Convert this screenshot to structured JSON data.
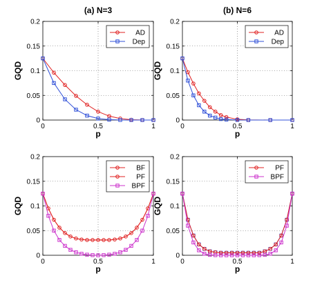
{
  "chart_data": [
    {
      "type": "line",
      "title": "(a) N=3",
      "xlabel": "p",
      "ylabel": "GQD",
      "xlim": [
        0,
        1
      ],
      "ylim": [
        0,
        0.2
      ],
      "x_ticks": [
        "0",
        "0.5",
        "1"
      ],
      "y_ticks": [
        "0",
        "0.05",
        "0.1",
        "0.15",
        "0.2"
      ],
      "grid": true,
      "legend_position": "top-right",
      "x": [
        0,
        0.1,
        0.2,
        0.3,
        0.4,
        0.5,
        0.6,
        0.7,
        0.8,
        0.9,
        1.0
      ],
      "series": [
        {
          "name": "AD",
          "color": "#e02020",
          "marker": "circle",
          "values": [
            0.125,
            0.096,
            0.071,
            0.049,
            0.031,
            0.017,
            0.008,
            0.003,
            0.0007,
            0.0001,
            0
          ]
        },
        {
          "name": "Dep",
          "color": "#3050d8",
          "marker": "square",
          "values": [
            0.125,
            0.075,
            0.042,
            0.021,
            0.009,
            0.003,
            0.0009,
            0.0002,
            0,
            0,
            0
          ]
        }
      ]
    },
    {
      "type": "line",
      "title": "(b) N=6",
      "xlabel": "p",
      "ylabel": "GQD",
      "xlim": [
        0,
        1
      ],
      "ylim": [
        0,
        0.2
      ],
      "x_ticks": [
        "0",
        "0.5",
        "1"
      ],
      "y_ticks": [
        "0",
        "0.05",
        "0.1",
        "0.15",
        "0.2"
      ],
      "grid": true,
      "legend_position": "top-right",
      "x": [
        0,
        0.05,
        0.1,
        0.15,
        0.2,
        0.25,
        0.3,
        0.35,
        0.4,
        0.5,
        0.6,
        0.8,
        1.0
      ],
      "series": [
        {
          "name": "AD",
          "color": "#e02020",
          "marker": "circle",
          "values": [
            0.125,
            0.097,
            0.074,
            0.054,
            0.039,
            0.026,
            0.017,
            0.01,
            0.006,
            0.0015,
            0.0003,
            0,
            0
          ]
        },
        {
          "name": "Dep",
          "color": "#3050d8",
          "marker": "square",
          "values": [
            0.125,
            0.08,
            0.05,
            0.03,
            0.017,
            0.009,
            0.005,
            0.002,
            0.001,
            0.0002,
            0,
            0,
            0
          ]
        }
      ]
    },
    {
      "type": "line",
      "title": "",
      "xlabel": "p",
      "ylabel": "GQD",
      "xlim": [
        0,
        1
      ],
      "ylim": [
        0,
        0.2
      ],
      "x_ticks": [
        "0",
        "0.5",
        "1"
      ],
      "y_ticks": [
        "0",
        "0.05",
        "0.1",
        "0.15",
        "0.2"
      ],
      "grid": true,
      "legend_position": "top-right",
      "x": [
        0,
        0.05,
        0.1,
        0.15,
        0.2,
        0.25,
        0.3,
        0.35,
        0.4,
        0.45,
        0.5,
        0.55,
        0.6,
        0.65,
        0.7,
        0.75,
        0.8,
        0.85,
        0.9,
        0.95,
        1.0
      ],
      "series": [
        {
          "name": "BF",
          "color": "#e02020",
          "marker": "circle",
          "values": [
            0.125,
            0.095,
            0.072,
            0.056,
            0.045,
            0.038,
            0.034,
            0.032,
            0.031,
            0.031,
            0.031,
            0.031,
            0.031,
            0.032,
            0.034,
            0.038,
            0.045,
            0.056,
            0.072,
            0.095,
            0.125
          ]
        },
        {
          "name": "PF",
          "color": "#e02020",
          "marker": "none",
          "values": [
            0.125,
            0.095,
            0.072,
            0.056,
            0.045,
            0.038,
            0.034,
            0.032,
            0.031,
            0.031,
            0.031,
            0.031,
            0.031,
            0.032,
            0.034,
            0.038,
            0.045,
            0.056,
            0.072,
            0.095,
            0.125
          ]
        },
        {
          "name": "BPF",
          "color": "#cc33cc",
          "marker": "square",
          "values": [
            0.125,
            0.08,
            0.05,
            0.031,
            0.019,
            0.011,
            0.006,
            0.003,
            0.0012,
            0.0003,
            0,
            0.0003,
            0.0012,
            0.003,
            0.006,
            0.011,
            0.019,
            0.031,
            0.05,
            0.08,
            0.125
          ]
        }
      ]
    },
    {
      "type": "line",
      "title": "",
      "xlabel": "p",
      "ylabel": "GQD",
      "xlim": [
        0,
        1
      ],
      "ylim": [
        0,
        0.2
      ],
      "x_ticks": [
        "0",
        "0.5",
        "1"
      ],
      "y_ticks": [
        "0",
        "0.05",
        "0.1",
        "0.15",
        "0.2"
      ],
      "grid": true,
      "legend_position": "top-right",
      "x": [
        0,
        0.05,
        0.1,
        0.15,
        0.2,
        0.25,
        0.3,
        0.35,
        0.4,
        0.45,
        0.5,
        0.55,
        0.6,
        0.65,
        0.7,
        0.75,
        0.8,
        0.85,
        0.9,
        0.95,
        1.0
      ],
      "series": [
        {
          "name": "",
          "color": "#3050d8",
          "marker": "square",
          "values": [
            0.125,
            0.072,
            0.04,
            0.022,
            0.013,
            0.008,
            0.006,
            0.005,
            0.005,
            0.005,
            0.005,
            0.005,
            0.005,
            0.005,
            0.005,
            0.008,
            0.013,
            0.022,
            0.04,
            0.072,
            0.125
          ]
        },
        {
          "name": "PF",
          "color": "#e02020",
          "marker": "circle",
          "values": [
            0.125,
            0.072,
            0.04,
            0.022,
            0.013,
            0.008,
            0.006,
            0.005,
            0.005,
            0.005,
            0.005,
            0.005,
            0.005,
            0.005,
            0.005,
            0.008,
            0.013,
            0.022,
            0.04,
            0.072,
            0.125
          ]
        },
        {
          "name": "BPF",
          "color": "#cc33cc",
          "marker": "square",
          "values": [
            0.125,
            0.06,
            0.026,
            0.01,
            0.003,
            0.0008,
            0.0002,
            0,
            0,
            0,
            0,
            0,
            0,
            0,
            0.0002,
            0.0008,
            0.003,
            0.01,
            0.026,
            0.06,
            0.125
          ]
        }
      ]
    }
  ]
}
